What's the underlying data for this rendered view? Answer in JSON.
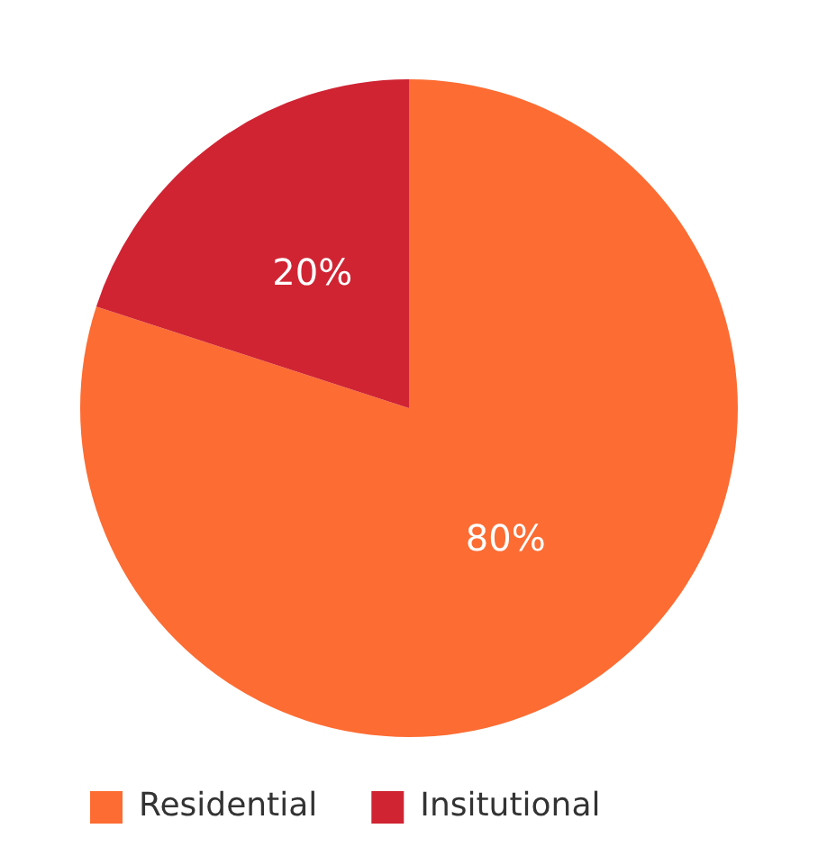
{
  "chart_data": {
    "type": "pie",
    "categories": [
      "Residential",
      "Insitutional"
    ],
    "values": [
      80,
      20
    ],
    "colors": [
      "#fd6c33",
      "#d02433"
    ],
    "value_labels": [
      "80%",
      "20%"
    ],
    "legend": "bottom left"
  }
}
